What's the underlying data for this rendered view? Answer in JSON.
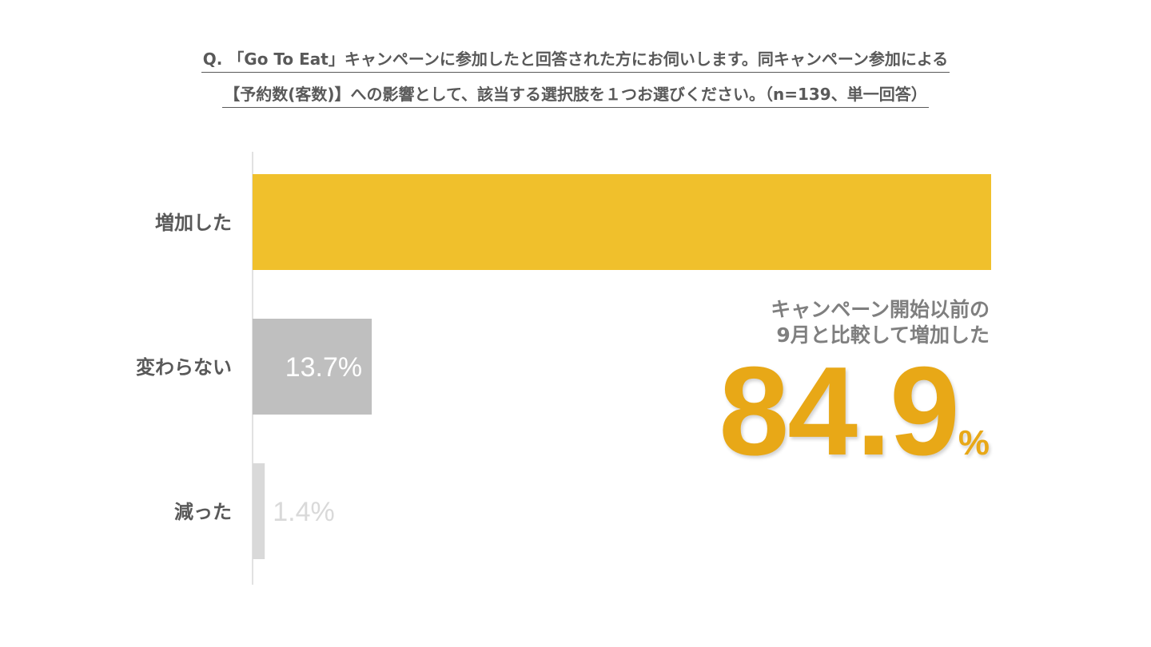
{
  "question": {
    "line1": "Q. 「Go To Eat」キャンペーンに参加したと回答された方にお伺いします。同キャンペーン参加による",
    "line2": "【予約数(客数)】への影響として、該当する選択肢を１つお選びください。（n=139、単一回答）"
  },
  "chart_data": {
    "type": "bar",
    "orientation": "horizontal",
    "categories": [
      "増加した",
      "変わらない",
      "減った"
    ],
    "values": [
      84.9,
      13.7,
      1.4
    ],
    "data_labels": [
      "",
      "13.7%",
      "1.4%"
    ],
    "colors": [
      "#f0c02c",
      "#bfbfbf",
      "#d9d9d9"
    ],
    "label_colors": [
      "#ffffff",
      "#ffffff",
      "#d9d9d9"
    ],
    "xlim": [
      0,
      84.9
    ],
    "grid": false,
    "legend": "none"
  },
  "callout": {
    "line1": "キャンペーン開始以前の",
    "line2": "9月と比較して増加した",
    "value": "84.9",
    "unit": "%"
  }
}
